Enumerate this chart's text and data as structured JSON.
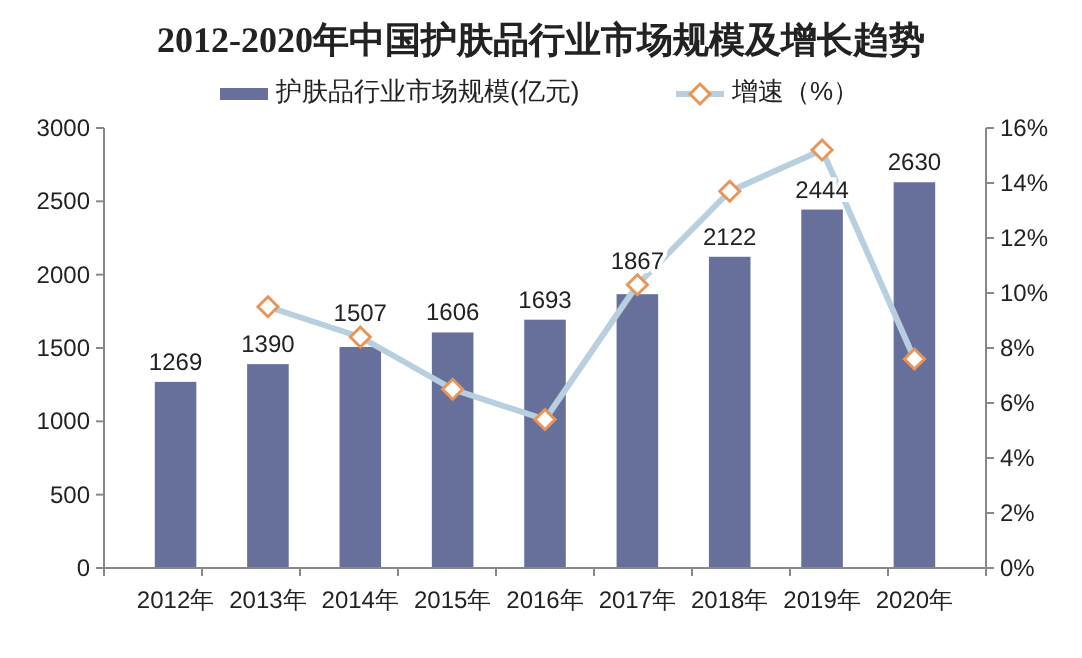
{
  "chart_data": {
    "type": "bar",
    "title": "2012-2020年中国护肤品行业市场规模及增长趋势",
    "categories": [
      "2012年",
      "2013年",
      "2014年",
      "2015年",
      "2016年",
      "2017年",
      "2018年",
      "2019年",
      "2020年"
    ],
    "series": [
      {
        "name": "护肤品行业市场规模(亿元)",
        "color": "#67709a",
        "values": [
          1269,
          1390,
          1507,
          1606,
          1693,
          1867,
          2122,
          2444,
          2630
        ],
        "value_labels": [
          "1269",
          "1390",
          "1507",
          "1606",
          "1693",
          "1867",
          "2122",
          "2444",
          "2630"
        ]
      },
      {
        "name": "增速（%）",
        "type": "line",
        "axis": "y2",
        "color": "#b8cfe0",
        "values": [
          null,
          9.5,
          8.4,
          6.5,
          5.4,
          10.3,
          13.7,
          15.2,
          7.6
        ]
      }
    ],
    "marker": "diamond",
    "legend": "top",
    "grid": false,
    "ylim": [
      0,
      3000
    ],
    "yticks": [
      0,
      500,
      1000,
      1500,
      2000,
      2500,
      3000
    ],
    "y2lim": [
      0,
      16
    ],
    "y2ticks": [
      {
        "value": 0,
        "label": "0%"
      },
      {
        "value": 2,
        "label": "2%"
      },
      {
        "value": 4,
        "label": "4%"
      },
      {
        "value": 6,
        "label": "6%"
      },
      {
        "value": 8,
        "label": "8%"
      },
      {
        "value": 10,
        "label": "10%"
      },
      {
        "value": 12,
        "label": "12%"
      },
      {
        "value": 14,
        "label": "14%"
      },
      {
        "value": 16,
        "label": "16%"
      }
    ]
  }
}
